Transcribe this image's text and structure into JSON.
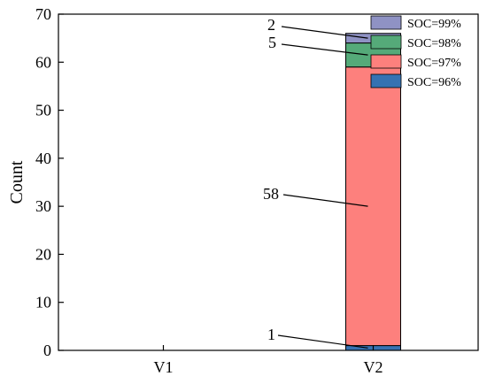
{
  "chart_data": {
    "type": "bar",
    "stacked": true,
    "categories": [
      "V1",
      "V2"
    ],
    "series": [
      {
        "name": "SOC=96%",
        "values": [
          0,
          1
        ],
        "color": "#3672b2"
      },
      {
        "name": "SOC=97%",
        "values": [
          0,
          58
        ],
        "color": "#fd807d"
      },
      {
        "name": "SOC=98%",
        "values": [
          0,
          5
        ],
        "color": "#55aa79"
      },
      {
        "name": "SOC=99%",
        "values": [
          0,
          2
        ],
        "color": "#8f92c4"
      }
    ],
    "legend_order": [
      "SOC=99%",
      "SOC=98%",
      "SOC=97%",
      "SOC=96%"
    ],
    "legend_position": "top-right",
    "ylabel": "Count",
    "xlabel": "",
    "ylim": [
      0,
      70
    ],
    "yticks": [
      "0",
      "10",
      "20",
      "30",
      "40",
      "50",
      "60",
      "70"
    ],
    "grid": false,
    "annotations": [
      {
        "text": "2",
        "category": "V2",
        "series": "SOC=99%"
      },
      {
        "text": "5",
        "category": "V2",
        "series": "SOC=98%"
      },
      {
        "text": "58",
        "category": "V2",
        "series": "SOC=97%"
      },
      {
        "text": "1",
        "category": "V2",
        "series": "SOC=96%"
      }
    ]
  }
}
